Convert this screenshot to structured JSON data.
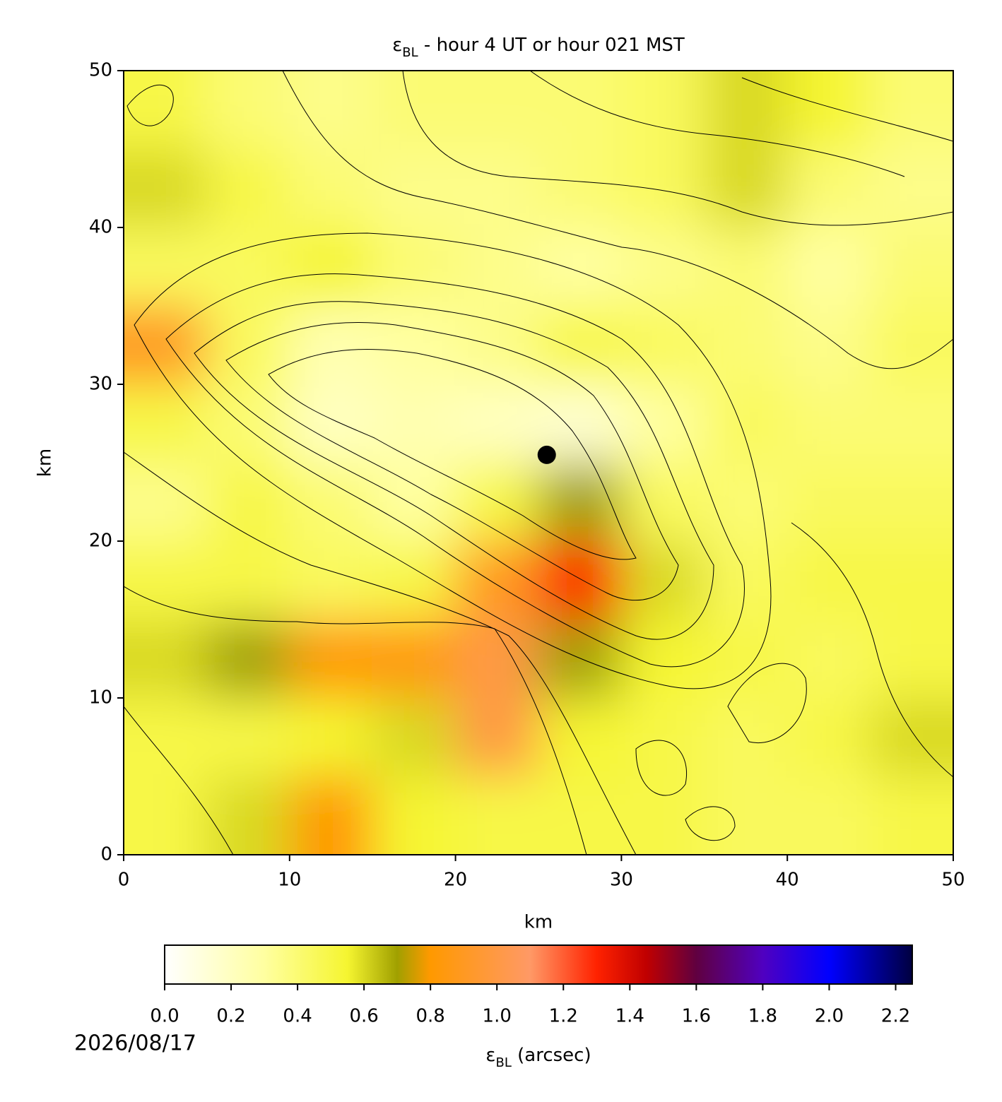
{
  "chart_data": {
    "type": "heatmap",
    "title": {
      "symbol": "ε",
      "subscript": "BL",
      "text": " - hour 4 UT or hour 021 MST"
    },
    "xlabel": "km",
    "ylabel": "km",
    "xlim": [
      0,
      50
    ],
    "ylim": [
      0,
      50
    ],
    "xticks": [
      0,
      10,
      20,
      30,
      40,
      50
    ],
    "yticks": [
      0,
      10,
      20,
      30,
      40,
      50
    ],
    "x": [
      2.5,
      7.5,
      12.5,
      17.5,
      22.5,
      27.5,
      32.5,
      37.5,
      42.5,
      47.5
    ],
    "y": [
      47.5,
      42.5,
      37.5,
      32.5,
      27.5,
      22.5,
      17.5,
      12.5,
      7.5,
      2.5
    ],
    "values": [
      [
        0.5,
        0.4,
        0.35,
        0.4,
        0.4,
        0.4,
        0.45,
        0.6,
        0.55,
        0.4
      ],
      [
        0.6,
        0.5,
        0.4,
        0.35,
        0.35,
        0.4,
        0.45,
        0.6,
        0.4,
        0.35
      ],
      [
        0.45,
        0.45,
        0.55,
        0.4,
        0.35,
        0.3,
        0.35,
        0.4,
        0.3,
        0.4
      ],
      [
        0.9,
        0.45,
        0.25,
        0.3,
        0.35,
        0.5,
        0.45,
        0.4,
        0.35,
        0.45
      ],
      [
        0.5,
        0.4,
        0.2,
        0.25,
        0.2,
        0.15,
        0.3,
        0.45,
        0.4,
        0.4
      ],
      [
        0.35,
        0.5,
        0.4,
        0.3,
        0.5,
        0.7,
        0.45,
        0.4,
        0.45,
        0.45
      ],
      [
        0.5,
        0.5,
        0.45,
        0.5,
        0.9,
        1.3,
        0.6,
        0.45,
        0.5,
        0.5
      ],
      [
        0.6,
        0.7,
        0.8,
        0.85,
        1.0,
        0.7,
        0.55,
        0.5,
        0.45,
        0.5
      ],
      [
        0.5,
        0.5,
        0.55,
        0.6,
        1.0,
        0.55,
        0.5,
        0.45,
        0.5,
        0.6
      ],
      [
        0.5,
        0.6,
        0.8,
        0.55,
        0.5,
        0.5,
        0.5,
        0.45,
        0.45,
        0.5
      ]
    ],
    "marker": {
      "x": 25.5,
      "y": 25.5,
      "color": "#000000"
    },
    "colorbar": {
      "label": {
        "symbol": "ε",
        "subscript": "BL",
        "text": " (arcsec)"
      },
      "clim": [
        0,
        2.25
      ],
      "ticks": [
        {
          "value": 0,
          "label": "0.0"
        },
        {
          "value": 0.2,
          "label": "0.2"
        },
        {
          "value": 0.4,
          "label": "0.4"
        },
        {
          "value": 0.6,
          "label": "0.6"
        },
        {
          "value": 0.8,
          "label": "0.8"
        },
        {
          "value": 1,
          "label": "1.0"
        },
        {
          "value": 1.2,
          "label": "1.2"
        },
        {
          "value": 1.4,
          "label": "1.4"
        },
        {
          "value": 1.6,
          "label": "1.6"
        },
        {
          "value": 1.8,
          "label": "1.8"
        },
        {
          "value": 2,
          "label": "2.0"
        },
        {
          "value": 2.2,
          "label": "2.2"
        }
      ],
      "colormap": [
        {
          "value": 0,
          "color": "#ffffff"
        },
        {
          "value": 0.3,
          "color": "#ffffa0"
        },
        {
          "value": 0.55,
          "color": "#f5f530"
        },
        {
          "value": 0.7,
          "color": "#a0a000"
        },
        {
          "value": 0.8,
          "color": "#ff9900"
        },
        {
          "value": 1.1,
          "color": "#ff9966"
        },
        {
          "value": 1.3,
          "color": "#ff2200"
        },
        {
          "value": 1.45,
          "color": "#c00000"
        },
        {
          "value": 1.6,
          "color": "#600040"
        },
        {
          "value": 1.8,
          "color": "#5000c0"
        },
        {
          "value": 2,
          "color": "#0000ff"
        },
        {
          "value": 2.25,
          "color": "#000040"
        }
      ]
    },
    "date": "2026/08/17"
  }
}
